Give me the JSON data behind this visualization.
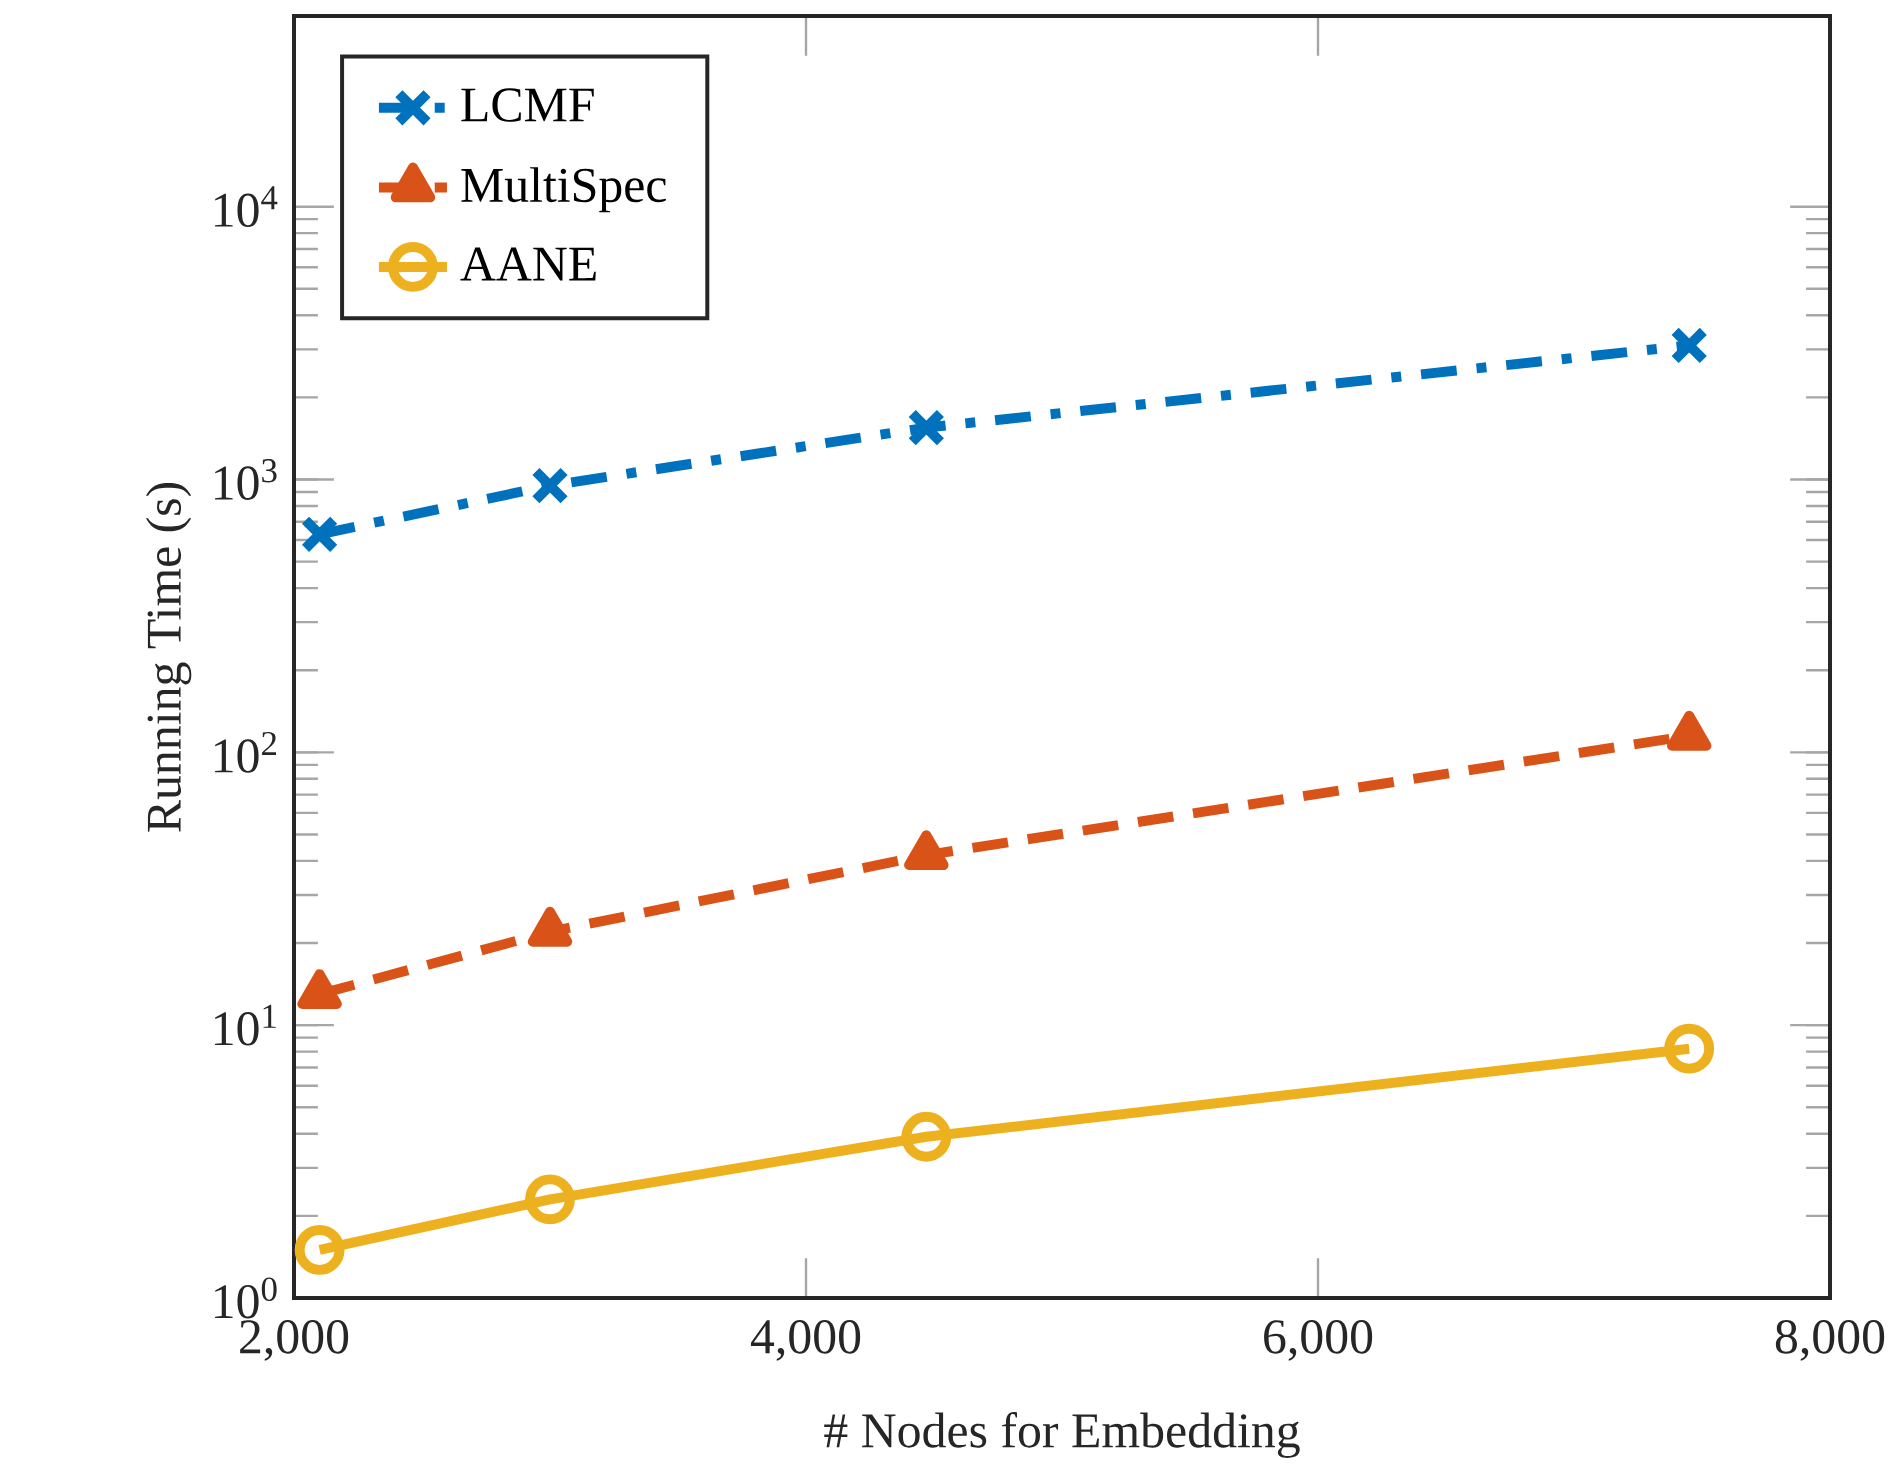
{
  "chart_data": {
    "type": "line",
    "xlabel": "# Nodes for Embedding",
    "ylabel": "Running Time (s)",
    "log": "y",
    "x": [
      2100,
      3000,
      4470,
      7450
    ],
    "series": [
      {
        "name": "LCMF",
        "color": "#0072bd",
        "marker": "cross",
        "line_style": "dashdot",
        "values": [
          630,
          950,
          1550,
          3100
        ]
      },
      {
        "name": "MultiSpec",
        "color": "#d95319",
        "marker": "triangle",
        "line_style": "dashed",
        "values": [
          13,
          22,
          42,
          115
        ]
      },
      {
        "name": "AANE",
        "color": "#edb120",
        "marker": "circle",
        "line_style": "solid",
        "values": [
          1.5,
          2.3,
          3.9,
          8.2
        ]
      }
    ],
    "xlim": [
      2000,
      8000
    ],
    "ylim": [
      1,
      50000
    ],
    "xticks": [
      {
        "value": 2000,
        "label": "2,000"
      },
      {
        "value": 4000,
        "label": "4,000"
      },
      {
        "value": 6000,
        "label": "6,000"
      },
      {
        "value": 8000,
        "label": "8,000"
      }
    ],
    "yticks": [
      {
        "value": 1,
        "label": "10$^{0}$"
      },
      {
        "value": 10,
        "label": "10$^{1}$"
      },
      {
        "value": 100,
        "label": "10$^{2}$"
      },
      {
        "value": 1000,
        "label": "10$^{3}$"
      },
      {
        "value": 10000,
        "label": "10$^{4}$"
      }
    ],
    "grid": false,
    "legend": "top left"
  }
}
